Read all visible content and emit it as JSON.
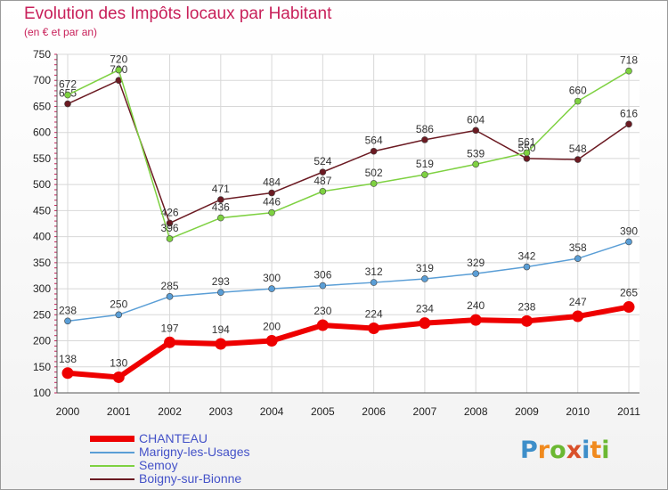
{
  "title": "Evolution des Impôts locaux par Habitant",
  "subtitle": "(en € et par an)",
  "logo": [
    "P",
    "r",
    "o",
    "x",
    "i",
    "t",
    "i"
  ],
  "logo_colors": [
    "#3d8ec9",
    "#f08a1e",
    "#6bb832",
    "#d9502a",
    "#3d8ec9",
    "#f08a1e",
    "#6bb832"
  ],
  "chart_data": {
    "type": "line",
    "x": [
      "2000",
      "2001",
      "2002",
      "2003",
      "2004",
      "2005",
      "2006",
      "2007",
      "2008",
      "2009",
      "2010",
      "2011"
    ],
    "ylim": [
      100,
      750
    ],
    "yticks": [
      100,
      150,
      200,
      250,
      300,
      350,
      400,
      450,
      500,
      550,
      600,
      650,
      700,
      750
    ],
    "grid": true,
    "legend_position": "bottom-left",
    "series": [
      {
        "name": "Boigny-sur-Bionne",
        "color": "#6b1a22",
        "values": [
          655,
          700,
          426,
          471,
          484,
          524,
          564,
          586,
          604,
          550,
          548,
          616
        ],
        "labels": [
          "655",
          "700",
          "426",
          "471",
          "484",
          "524",
          "564",
          "586",
          "604",
          "550",
          "548",
          "616"
        ]
      },
      {
        "name": "Semoy",
        "color": "#7ed141",
        "values": [
          672,
          720,
          396,
          436,
          446,
          487,
          502,
          519,
          539,
          561,
          660,
          718
        ],
        "labels": [
          "672",
          "720",
          "396",
          "436",
          "446",
          "487",
          "502",
          "519",
          "539",
          "561",
          "660",
          "718"
        ]
      },
      {
        "name": "Marigny-les-Usages",
        "color": "#5a9ed6",
        "values": [
          238,
          250,
          285,
          293,
          300,
          306,
          312,
          319,
          329,
          342,
          358,
          390
        ],
        "labels": [
          "238",
          "250",
          "285",
          "293",
          "300",
          "306",
          "312",
          "319",
          "329",
          "342",
          "358",
          "390"
        ]
      },
      {
        "name": "CHANTEAU",
        "color": "#ee0000",
        "values": [
          138,
          130,
          197,
          194,
          200,
          230,
          224,
          234,
          240,
          238,
          247,
          265
        ],
        "labels": [
          "138",
          "130",
          "197",
          "194",
          "200",
          "230",
          "224",
          "234",
          "240",
          "238",
          "247",
          "265"
        ]
      }
    ],
    "legend_order": [
      "CHANTEAU",
      "Marigny-les-Usages",
      "Semoy",
      "Boigny-sur-Bionne"
    ]
  }
}
